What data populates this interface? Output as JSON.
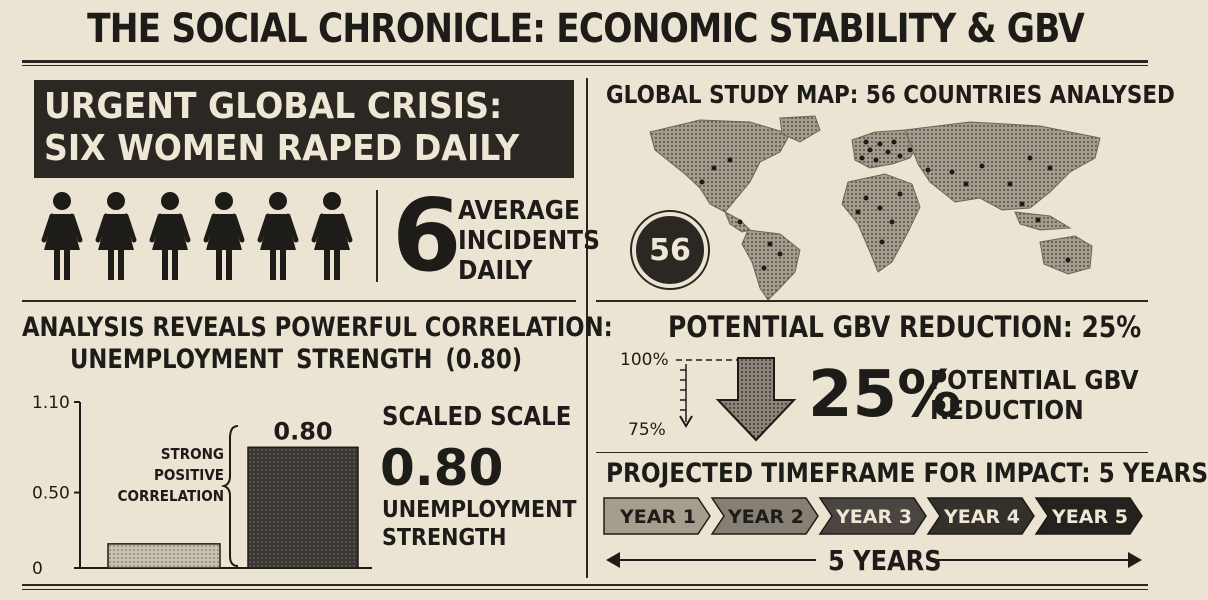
{
  "masthead": {
    "title": "THE SOCIAL CHRONICLE: ECONOMIC STABILITY & GBV"
  },
  "crisis": {
    "headline_line1": "URGENT GLOBAL CRISIS:",
    "headline_line2": "SIX WOMEN RAPED DAILY",
    "figure_count": 6,
    "big_number": "6",
    "label_lines": [
      "AVERAGE",
      "INCIDENTS",
      "DAILY"
    ]
  },
  "analysis": {
    "title_line1": "ANALYSIS REVEALS POWERFUL CORRELATION:",
    "title_line2": "UNEMPLOYMENT  STRENGTH  (0.80)",
    "annotation_lines": [
      "STRONG",
      "POSITIVE",
      "CORRELATION"
    ],
    "scaled_title": "SCALED SCALE",
    "scaled_value": "0.80",
    "scaled_sub_lines": [
      "UNEMPLOYMENT",
      "STRENGTH"
    ]
  },
  "chart_data": {
    "type": "bar",
    "categories": [
      "",
      ""
    ],
    "values": [
      0.16,
      0.8
    ],
    "data_labels": [
      "",
      "0.80"
    ],
    "title": "",
    "xlabel": "",
    "ylabel": "",
    "ylim": [
      0,
      1.1
    ],
    "yticks": [
      0,
      0.5,
      1.1
    ],
    "ytick_labels": [
      "0",
      "0.50",
      "1.10"
    ],
    "grid": false,
    "colors": [
      "#bdb5a4",
      "#3a3631"
    ]
  },
  "map": {
    "title": "GLOBAL STUDY MAP: 56 COUNTRIES ANALYSED",
    "badge": "56"
  },
  "reduction": {
    "title": "POTENTIAL GBV REDUCTION: 25%",
    "from_label": "100%",
    "to_label": "75%",
    "big_value": "25%",
    "desc_lines": [
      "POTENTIAL GBV",
      "REDUCTION"
    ]
  },
  "timeframe": {
    "title": "PROJECTED TIMEFRAME FOR IMPACT: 5 YEARS",
    "years": [
      "YEAR 1",
      "YEAR 2",
      "YEAR 3",
      "YEAR 4",
      "YEAR 5"
    ],
    "total_label": "5 YEARS"
  },
  "colors": {
    "paper": "#ece4d3",
    "ink": "#1e1c19",
    "crisis_box": "#2b2824"
  }
}
